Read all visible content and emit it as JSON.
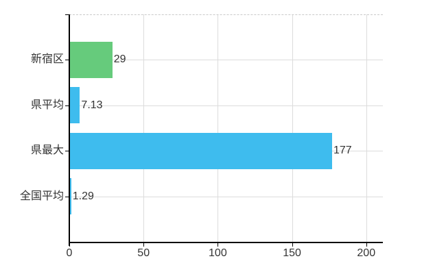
{
  "chart_data": {
    "type": "bar",
    "orientation": "horizontal",
    "title": "",
    "xlabel": "",
    "ylabel": "",
    "categories": [
      "新宿区",
      "県平均",
      "県最大",
      "全国平均"
    ],
    "values": [
      29,
      7.13,
      177,
      1.29
    ],
    "value_labels": [
      "29",
      "7.13",
      "177",
      "1.29"
    ],
    "bar_colors": [
      "#66cb7c",
      "#3ebcee",
      "#3ebcee",
      "#3ebcee"
    ],
    "x_ticks": [
      0,
      50,
      100,
      150,
      200
    ],
    "x_tick_labels": [
      "0",
      "50",
      "100",
      "150",
      "200"
    ],
    "xlim": [
      0,
      211.2
    ],
    "grid": true,
    "legend": false,
    "colors": {
      "axis": "#000000",
      "grid": "#dcdcdc",
      "top_border": "#c9c9c9",
      "text": "#333333",
      "background": "#ffffff"
    }
  }
}
